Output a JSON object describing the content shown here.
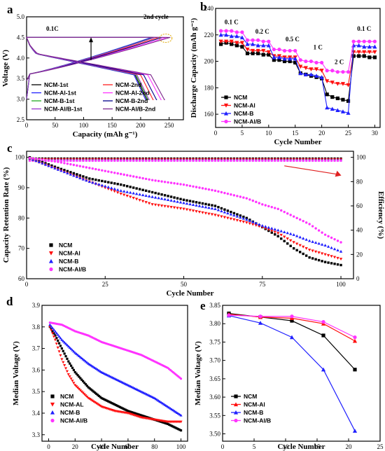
{
  "chart_data": [
    {
      "panel": "a",
      "type": "line",
      "xlabel": "Capacity (mAh g⁻¹)",
      "ylabel": "Voltage (V)",
      "xlim": [
        0,
        275
      ],
      "ylim": [
        2.5,
        5.0
      ],
      "xticks": [
        "0",
        "50",
        "100",
        "150",
        "200",
        "250"
      ],
      "yticks": [
        "2.5",
        "3.0",
        "3.5",
        "4.0",
        "4.5",
        "5.0"
      ],
      "annotations": [
        "0.1C",
        "2nd cycle"
      ],
      "series": [
        {
          "name": "NCM-1st",
          "color": "#000000",
          "cap": 221
        },
        {
          "name": "NCM-2nd",
          "color": "#ff2020",
          "cap": 232
        },
        {
          "name": "NCM-Al-1st",
          "color": "#2020ff",
          "cap": 219
        },
        {
          "name": "NCM-Al-2nd",
          "color": "#ff33ff",
          "cap": 246
        },
        {
          "name": "NCM-B-1st",
          "color": "#22aa22",
          "cap": 223
        },
        {
          "name": "NCM-B-2nd",
          "color": "#00008b",
          "cap": 238
        },
        {
          "name": "NCM-Al/B-1st",
          "color": "#9933cc",
          "cap": 225
        },
        {
          "name": "NCM-Al/B-2nd",
          "color": "#7f2a8f",
          "cap": 252
        }
      ],
      "legend_columns": [
        [
          "NCM-1st",
          "NCM-Al-1st",
          "NCM-B-1st",
          "NCM-Al/B-1st"
        ],
        [
          "NCM-2nd",
          "NCM-Al-2nd",
          "NCM-B-2nd",
          "NCM-Al/B-2nd"
        ]
      ]
    },
    {
      "panel": "b",
      "type": "line",
      "xlabel": "Cycle Number",
      "ylabel": "Discharge Capacity (mAh g⁻¹)",
      "xlim": [
        0,
        31
      ],
      "ylim": [
        150,
        240
      ],
      "xticks": [
        "0",
        "5",
        "10",
        "15",
        "20",
        "25",
        "30"
      ],
      "yticks": [
        "160",
        "180",
        "200",
        "220",
        "240"
      ],
      "rate_labels": [
        "0.1 C",
        "0.2 C",
        "0.5 C",
        "1 C",
        "2 C",
        "0.1 C"
      ],
      "series": [
        {
          "name": "NCM",
          "color": "#000000",
          "marker": "square",
          "values": [
            213,
            214,
            213,
            212,
            211,
            206,
            206,
            206,
            205,
            205,
            201,
            201,
            200,
            200,
            199,
            191,
            190,
            189,
            188,
            187,
            175,
            173,
            172,
            171,
            170,
            204,
            204,
            204,
            203,
            203
          ]
        },
        {
          "name": "NCM-Al",
          "color": "#ff1010",
          "marker": "tri-down",
          "values": [
            215,
            215,
            215,
            214,
            214,
            209,
            208,
            208,
            208,
            207,
            204,
            204,
            203,
            203,
            203,
            196,
            195,
            194,
            194,
            193,
            185,
            184,
            183,
            183,
            182,
            207,
            207,
            207,
            207,
            207
          ]
        },
        {
          "name": "NCM-B",
          "color": "#2020ff",
          "marker": "tri-up",
          "values": [
            220,
            220,
            219,
            219,
            218,
            213,
            213,
            212,
            212,
            212,
            203,
            203,
            202,
            202,
            202,
            191,
            190,
            190,
            189,
            188,
            165,
            164,
            163,
            162,
            161,
            212,
            212,
            211,
            211,
            211
          ]
        },
        {
          "name": "NCM-Al/B",
          "color": "#ff33ff",
          "marker": "circle",
          "values": [
            223,
            223,
            223,
            222,
            222,
            216,
            216,
            216,
            215,
            215,
            209,
            209,
            208,
            208,
            208,
            201,
            200,
            200,
            199,
            199,
            193,
            193,
            192,
            192,
            192,
            215,
            215,
            215,
            215,
            215
          ]
        }
      ]
    },
    {
      "panel": "c",
      "type": "scatter",
      "xlabel": "Cycle Number",
      "ylabel": "Capacity Retention Rate (%)",
      "y2label": "Efficiency (%)",
      "xlim": [
        0,
        104
      ],
      "ylim": [
        60,
        102
      ],
      "y2lim": [
        0,
        105
      ],
      "xticks": [
        "0",
        "25",
        "50",
        "75",
        "100"
      ],
      "yticks": [
        "60",
        "70",
        "80",
        "90",
        "100"
      ],
      "y2ticks": [
        "0",
        "20",
        "40",
        "60",
        "80",
        "100"
      ],
      "efficiency_value": 99,
      "series": [
        {
          "name": "NCM",
          "color": "#000000",
          "marker": "square",
          "points": [
            [
              1,
              100
            ],
            [
              10,
              96.5
            ],
            [
              20,
              93
            ],
            [
              30,
              91
            ],
            [
              40,
              88.5
            ],
            [
              50,
              86
            ],
            [
              60,
              84
            ],
            [
              70,
              80
            ],
            [
              75,
              77
            ],
            [
              80,
              74
            ],
            [
              85,
              70
            ],
            [
              90,
              67
            ],
            [
              95,
              65.5
            ],
            [
              100,
              64.5
            ]
          ]
        },
        {
          "name": "NCM-Al",
          "color": "#ff1010",
          "marker": "tri-down",
          "points": [
            [
              1,
              99.5
            ],
            [
              10,
              96
            ],
            [
              20,
              92
            ],
            [
              30,
              88
            ],
            [
              40,
              84.5
            ],
            [
              50,
              83
            ],
            [
              60,
              81
            ],
            [
              70,
              78.5
            ],
            [
              75,
              77
            ],
            [
              80,
              75
            ],
            [
              85,
              72
            ],
            [
              90,
              69.5
            ],
            [
              95,
              68
            ],
            [
              100,
              66.5
            ]
          ]
        },
        {
          "name": "NCM-B",
          "color": "#2020ff",
          "marker": "tri-up",
          "points": [
            [
              1,
              99.7
            ],
            [
              10,
              96
            ],
            [
              20,
              92
            ],
            [
              30,
              89
            ],
            [
              40,
              87
            ],
            [
              50,
              85
            ],
            [
              60,
              83
            ],
            [
              70,
              79.5
            ],
            [
              75,
              77.5
            ],
            [
              80,
              76
            ],
            [
              85,
              74.5
            ],
            [
              90,
              72.5
            ],
            [
              95,
              71
            ],
            [
              100,
              69
            ]
          ]
        },
        {
          "name": "NCM-Al/B",
          "color": "#ff33ff",
          "marker": "circle",
          "points": [
            [
              1,
              99.8
            ],
            [
              10,
              98.5
            ],
            [
              20,
              96.5
            ],
            [
              30,
              94.5
            ],
            [
              40,
              92.5
            ],
            [
              50,
              91
            ],
            [
              60,
              89
            ],
            [
              70,
              86.5
            ],
            [
              75,
              84.5
            ],
            [
              80,
              83
            ],
            [
              85,
              80.5
            ],
            [
              90,
              78
            ],
            [
              95,
              74.5
            ],
            [
              100,
              72
            ]
          ]
        }
      ]
    },
    {
      "panel": "d",
      "type": "scatter",
      "xlabel": "Cycle Number",
      "ylabel": "Median Voltage (V)",
      "xlim": [
        -5,
        105
      ],
      "ylim": [
        3.27,
        3.9
      ],
      "xticks": [
        "0",
        "20",
        "40",
        "60",
        "80",
        "100"
      ],
      "yticks": [
        "3.3",
        "3.4",
        "3.5",
        "3.6",
        "3.7",
        "3.8",
        "3.9"
      ],
      "series": [
        {
          "name": "NCM",
          "color": "#000000",
          "marker": "square",
          "points": [
            [
              1,
              3.8
            ],
            [
              5,
              3.76
            ],
            [
              10,
              3.7
            ],
            [
              15,
              3.64
            ],
            [
              20,
              3.59
            ],
            [
              30,
              3.52
            ],
            [
              40,
              3.47
            ],
            [
              50,
              3.44
            ],
            [
              60,
              3.41
            ],
            [
              70,
              3.39
            ],
            [
              80,
              3.37
            ],
            [
              90,
              3.35
            ],
            [
              100,
              3.32
            ]
          ]
        },
        {
          "name": "NCM-AL",
          "color": "#ff1010",
          "marker": "tri-down",
          "points": [
            [
              1,
              3.8
            ],
            [
              5,
              3.74
            ],
            [
              10,
              3.65
            ],
            [
              15,
              3.58
            ],
            [
              20,
              3.53
            ],
            [
              30,
              3.47
            ],
            [
              40,
              3.43
            ],
            [
              50,
              3.41
            ],
            [
              60,
              3.4
            ],
            [
              70,
              3.38
            ],
            [
              80,
              3.37
            ],
            [
              90,
              3.36
            ],
            [
              100,
              3.36
            ]
          ]
        },
        {
          "name": "NCM-B",
          "color": "#2020ff",
          "marker": "tri-up",
          "points": [
            [
              1,
              3.81
            ],
            [
              10,
              3.74
            ],
            [
              20,
              3.68
            ],
            [
              30,
              3.63
            ],
            [
              40,
              3.59
            ],
            [
              50,
              3.56
            ],
            [
              60,
              3.53
            ],
            [
              70,
              3.5
            ],
            [
              80,
              3.47
            ],
            [
              90,
              3.43
            ],
            [
              100,
              3.39
            ]
          ]
        },
        {
          "name": "NCM-Al/B",
          "color": "#ff33ff",
          "marker": "circle",
          "points": [
            [
              1,
              3.82
            ],
            [
              10,
              3.81
            ],
            [
              20,
              3.78
            ],
            [
              30,
              3.76
            ],
            [
              40,
              3.73
            ],
            [
              50,
              3.71
            ],
            [
              60,
              3.69
            ],
            [
              70,
              3.67
            ],
            [
              80,
              3.64
            ],
            [
              90,
              3.61
            ],
            [
              100,
              3.56
            ]
          ]
        }
      ]
    },
    {
      "panel": "e",
      "type": "line",
      "xlabel": "Cycle Number",
      "ylabel": "Median Voltage (V)",
      "xlim": [
        0,
        25
      ],
      "ylim": [
        3.48,
        3.85
      ],
      "xticks": [
        "0",
        "5",
        "10",
        "15",
        "20",
        "25"
      ],
      "yticks": [
        "3.50",
        "3.55",
        "3.60",
        "3.65",
        "3.70",
        "3.75",
        "3.80",
        "3.85"
      ],
      "x": [
        1,
        6,
        11,
        16,
        21
      ],
      "series": [
        {
          "name": "NCM",
          "color": "#000000",
          "marker": "square",
          "values": [
            3.828,
            3.818,
            3.808,
            3.768,
            3.675
          ]
        },
        {
          "name": "NCM-Al",
          "color": "#ff1010",
          "marker": "tri-up",
          "values": [
            3.826,
            3.818,
            3.815,
            3.8,
            3.753
          ]
        },
        {
          "name": "NCM-B",
          "color": "#2020ff",
          "marker": "tri-up",
          "values": [
            3.822,
            3.802,
            3.763,
            3.675,
            3.508
          ]
        },
        {
          "name": "NCM-Al/B",
          "color": "#ff33ff",
          "marker": "circle",
          "values": [
            3.823,
            3.82,
            3.82,
            3.805,
            3.763
          ]
        }
      ]
    }
  ]
}
